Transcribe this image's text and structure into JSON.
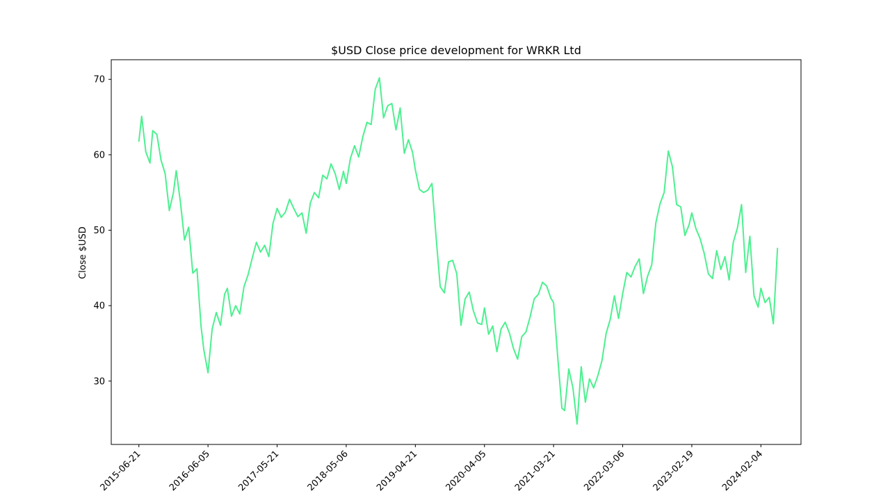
{
  "chart_data": {
    "type": "line",
    "title": "$USD Close price development for WRKR Ltd",
    "xlabel": "",
    "ylabel": "Close $USD",
    "x_ticks": [
      "2015-06-21",
      "2016-06-05",
      "2017-05-21",
      "2018-05-06",
      "2019-04-21",
      "2020-04-05",
      "2021-03-21",
      "2022-03-06",
      "2023-02-19",
      "2024-02-04"
    ],
    "y_ticks": [
      30,
      40,
      50,
      60,
      70
    ],
    "xlim": [
      "2015-02-01",
      "2024-08-25"
    ],
    "ylim": [
      21.6,
      72.6
    ],
    "grid": false,
    "line_color": "#4cf08f",
    "series": [
      {
        "values": [
          [
            "2015-06-21",
            61.8
          ],
          [
            "2015-07-05",
            65.1
          ],
          [
            "2015-07-26",
            60.4
          ],
          [
            "2015-08-16",
            58.9
          ],
          [
            "2015-08-30",
            63.2
          ],
          [
            "2015-09-20",
            62.7
          ],
          [
            "2015-10-11",
            59.3
          ],
          [
            "2015-11-01",
            57.5
          ],
          [
            "2015-11-22",
            52.6
          ],
          [
            "2015-12-13",
            55.0
          ],
          [
            "2015-12-27",
            57.9
          ],
          [
            "2016-01-17",
            53.8
          ],
          [
            "2016-02-07",
            48.7
          ],
          [
            "2016-02-28",
            50.4
          ],
          [
            "2016-03-20",
            44.3
          ],
          [
            "2016-04-10",
            44.9
          ],
          [
            "2016-05-01",
            37.2
          ],
          [
            "2016-05-15",
            34.1
          ],
          [
            "2016-06-05",
            31.1
          ],
          [
            "2016-06-26",
            36.9
          ],
          [
            "2016-07-17",
            39.1
          ],
          [
            "2016-08-07",
            37.4
          ],
          [
            "2016-08-28",
            41.5
          ],
          [
            "2016-09-11",
            42.3
          ],
          [
            "2016-10-02",
            38.6
          ],
          [
            "2016-10-23",
            40.0
          ],
          [
            "2016-11-13",
            38.9
          ],
          [
            "2016-12-04",
            42.5
          ],
          [
            "2016-12-25",
            44.1
          ],
          [
            "2017-01-15",
            46.3
          ],
          [
            "2017-02-05",
            48.4
          ],
          [
            "2017-02-26",
            47.1
          ],
          [
            "2017-03-19",
            48.0
          ],
          [
            "2017-04-09",
            46.5
          ],
          [
            "2017-04-30",
            50.9
          ],
          [
            "2017-05-21",
            52.9
          ],
          [
            "2017-06-11",
            51.7
          ],
          [
            "2017-07-02",
            52.4
          ],
          [
            "2017-07-23",
            54.1
          ],
          [
            "2017-08-13",
            52.9
          ],
          [
            "2017-09-03",
            51.8
          ],
          [
            "2017-09-24",
            52.3
          ],
          [
            "2017-10-15",
            49.6
          ],
          [
            "2017-11-05",
            53.6
          ],
          [
            "2017-11-26",
            55.0
          ],
          [
            "2017-12-17",
            54.3
          ],
          [
            "2018-01-07",
            57.3
          ],
          [
            "2018-01-28",
            56.8
          ],
          [
            "2018-02-18",
            58.8
          ],
          [
            "2018-03-11",
            57.5
          ],
          [
            "2018-04-01",
            55.4
          ],
          [
            "2018-04-22",
            57.8
          ],
          [
            "2018-05-06",
            56.2
          ],
          [
            "2018-05-27",
            59.5
          ],
          [
            "2018-06-17",
            61.2
          ],
          [
            "2018-07-08",
            59.7
          ],
          [
            "2018-07-29",
            62.4
          ],
          [
            "2018-08-19",
            64.3
          ],
          [
            "2018-09-09",
            64.0
          ],
          [
            "2018-09-30",
            68.7
          ],
          [
            "2018-10-21",
            70.2
          ],
          [
            "2018-11-11",
            64.9
          ],
          [
            "2018-12-02",
            66.5
          ],
          [
            "2018-12-23",
            66.8
          ],
          [
            "2019-01-13",
            63.3
          ],
          [
            "2019-02-03",
            66.2
          ],
          [
            "2019-02-24",
            60.2
          ],
          [
            "2019-03-17",
            62.0
          ],
          [
            "2019-04-07",
            60.3
          ],
          [
            "2019-04-21",
            58.0
          ],
          [
            "2019-05-12",
            55.4
          ],
          [
            "2019-06-02",
            55.0
          ],
          [
            "2019-06-23",
            55.3
          ],
          [
            "2019-07-14",
            56.2
          ],
          [
            "2019-08-04",
            49.1
          ],
          [
            "2019-08-25",
            42.5
          ],
          [
            "2019-09-15",
            41.7
          ],
          [
            "2019-10-06",
            45.8
          ],
          [
            "2019-10-27",
            46.0
          ],
          [
            "2019-11-17",
            44.2
          ],
          [
            "2019-12-08",
            37.4
          ],
          [
            "2019-12-29",
            40.9
          ],
          [
            "2020-01-19",
            41.8
          ],
          [
            "2020-02-09",
            39.3
          ],
          [
            "2020-03-01",
            37.7
          ],
          [
            "2020-03-22",
            37.5
          ],
          [
            "2020-04-05",
            39.7
          ],
          [
            "2020-04-26",
            36.2
          ],
          [
            "2020-05-17",
            37.3
          ],
          [
            "2020-06-07",
            33.9
          ],
          [
            "2020-06-28",
            36.9
          ],
          [
            "2020-07-19",
            37.8
          ],
          [
            "2020-08-09",
            36.4
          ],
          [
            "2020-08-30",
            34.3
          ],
          [
            "2020-09-20",
            32.9
          ],
          [
            "2020-10-11",
            35.9
          ],
          [
            "2020-11-01",
            36.5
          ],
          [
            "2020-11-22",
            38.5
          ],
          [
            "2020-12-13",
            40.9
          ],
          [
            "2021-01-03",
            41.5
          ],
          [
            "2021-01-24",
            43.1
          ],
          [
            "2021-02-14",
            42.6
          ],
          [
            "2021-03-07",
            41.0
          ],
          [
            "2021-03-21",
            40.4
          ],
          [
            "2021-04-11",
            33.2
          ],
          [
            "2021-05-02",
            26.4
          ],
          [
            "2021-05-16",
            26.1
          ],
          [
            "2021-06-06",
            31.6
          ],
          [
            "2021-06-27",
            29.1
          ],
          [
            "2021-07-18",
            24.3
          ],
          [
            "2021-08-08",
            31.9
          ],
          [
            "2021-08-29",
            27.2
          ],
          [
            "2021-09-19",
            30.3
          ],
          [
            "2021-10-10",
            29.1
          ],
          [
            "2021-10-31",
            30.7
          ],
          [
            "2021-11-21",
            32.7
          ],
          [
            "2021-12-12",
            36.3
          ],
          [
            "2022-01-02",
            38.2
          ],
          [
            "2022-01-23",
            41.3
          ],
          [
            "2022-02-13",
            38.3
          ],
          [
            "2022-03-06",
            41.6
          ],
          [
            "2022-03-27",
            44.4
          ],
          [
            "2022-04-17",
            43.8
          ],
          [
            "2022-05-08",
            45.2
          ],
          [
            "2022-05-29",
            46.2
          ],
          [
            "2022-06-19",
            41.6
          ],
          [
            "2022-07-10",
            43.9
          ],
          [
            "2022-07-31",
            45.4
          ],
          [
            "2022-08-21",
            51.0
          ],
          [
            "2022-09-11",
            53.5
          ],
          [
            "2022-10-02",
            55.0
          ],
          [
            "2022-10-23",
            60.5
          ],
          [
            "2022-11-13",
            58.4
          ],
          [
            "2022-12-04",
            53.4
          ],
          [
            "2022-12-25",
            53.1
          ],
          [
            "2023-01-15",
            49.3
          ],
          [
            "2023-02-05",
            50.7
          ],
          [
            "2023-02-19",
            52.3
          ],
          [
            "2023-03-12",
            50.2
          ],
          [
            "2023-04-02",
            48.9
          ],
          [
            "2023-04-23",
            46.9
          ],
          [
            "2023-05-14",
            44.2
          ],
          [
            "2023-06-04",
            43.6
          ],
          [
            "2023-06-25",
            47.3
          ],
          [
            "2023-07-16",
            44.8
          ],
          [
            "2023-08-06",
            46.5
          ],
          [
            "2023-08-27",
            43.4
          ],
          [
            "2023-09-17",
            48.4
          ],
          [
            "2023-10-08",
            50.3
          ],
          [
            "2023-10-29",
            53.4
          ],
          [
            "2023-11-19",
            44.4
          ],
          [
            "2023-12-10",
            49.2
          ],
          [
            "2023-12-31",
            41.3
          ],
          [
            "2024-01-21",
            39.8
          ],
          [
            "2024-02-04",
            42.3
          ],
          [
            "2024-02-25",
            40.4
          ],
          [
            "2024-03-17",
            41.1
          ],
          [
            "2024-04-07",
            37.6
          ],
          [
            "2024-04-28",
            47.6
          ]
        ]
      }
    ]
  }
}
